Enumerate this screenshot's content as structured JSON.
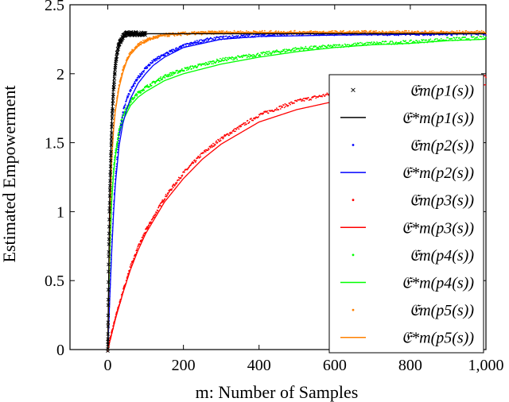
{
  "chart_data": {
    "type": "line",
    "xlabel": "m: Number of Samples",
    "ylabel": "Estimated Empowerment",
    "xlim": [
      -100,
      1000
    ],
    "ylim": [
      0,
      2.5
    ],
    "xticks": [
      0,
      200,
      400,
      600,
      800,
      1000
    ],
    "xtick_labels": [
      "0",
      "200",
      "400",
      "600",
      "800",
      "1,000"
    ],
    "yticks": [
      0,
      0.5,
      1,
      1.5,
      2,
      2.5
    ],
    "ytick_labels": [
      "0",
      "0.5",
      "1",
      "1.5",
      "2",
      "2.5"
    ],
    "grid": false,
    "legend_position": "right",
    "legend": [
      {
        "label": "𝔈m(p1(s))",
        "kind": "marker",
        "marker": "x",
        "color": "#000000"
      },
      {
        "label": "𝔈*m(p1(s))",
        "kind": "line",
        "color": "#000000"
      },
      {
        "label": "𝔈m(p2(s))",
        "kind": "marker",
        "marker": "dot",
        "color": "#0000ff"
      },
      {
        "label": "𝔈*m(p2(s))",
        "kind": "line",
        "color": "#0000ff"
      },
      {
        "label": "𝔈m(p3(s))",
        "kind": "marker",
        "marker": "dot",
        "color": "#ff0000"
      },
      {
        "label": "𝔈*m(p3(s))",
        "kind": "line",
        "color": "#ff0000"
      },
      {
        "label": "𝔈m(p4(s))",
        "kind": "marker",
        "marker": "dot",
        "color": "#00ff00"
      },
      {
        "label": "𝔈*m(p4(s))",
        "kind": "line",
        "color": "#00ff00"
      },
      {
        "label": "𝔈m(p5(s))",
        "kind": "marker",
        "marker": "dot",
        "color": "#ff8000"
      },
      {
        "label": "𝔈*m(p5(s))",
        "kind": "line",
        "color": "#ff8000"
      }
    ],
    "series": [
      {
        "color": "#000000",
        "marker": "x",
        "estimated": {
          "x": [
            0,
            2,
            4,
            6,
            8,
            10,
            12,
            15,
            20,
            25,
            30,
            40,
            50,
            60,
            80,
            100
          ],
          "y": [
            0,
            0.62,
            0.97,
            1.22,
            1.4,
            1.58,
            1.72,
            1.88,
            2.05,
            2.16,
            2.22,
            2.27,
            2.29,
            2.29,
            2.29,
            2.29
          ]
        },
        "optimal": {
          "x": [
            0,
            5,
            10,
            15,
            20,
            30,
            40,
            60,
            100,
            200,
            1000
          ],
          "y": [
            0,
            1.12,
            1.63,
            1.93,
            2.08,
            2.21,
            2.26,
            2.28,
            2.29,
            2.29,
            2.29
          ]
        }
      },
      {
        "color": "#0000ff",
        "marker": "dot",
        "estimated": {
          "x": [
            0,
            5,
            10,
            15,
            20,
            30,
            40,
            50,
            60,
            80,
            100,
            120,
            150,
            200,
            250,
            300,
            400,
            500,
            700,
            1000
          ],
          "y": [
            0,
            0.38,
            0.73,
            1.02,
            1.25,
            1.55,
            1.72,
            1.82,
            1.88,
            1.97,
            2.04,
            2.09,
            2.14,
            2.2,
            2.24,
            2.26,
            2.28,
            2.29,
            2.29,
            2.29
          ]
        },
        "optimal": {
          "x": [
            0,
            5,
            10,
            15,
            20,
            30,
            40,
            50,
            60,
            80,
            100,
            120,
            150,
            200,
            300,
            400,
            600,
            1000
          ],
          "y": [
            0,
            0.36,
            0.69,
            0.98,
            1.2,
            1.48,
            1.64,
            1.74,
            1.82,
            1.93,
            2.0,
            2.06,
            2.12,
            2.19,
            2.25,
            2.27,
            2.28,
            2.29
          ]
        }
      },
      {
        "color": "#ff0000",
        "marker": "dot",
        "estimated": {
          "x": [
            0,
            10,
            20,
            40,
            60,
            80,
            100,
            150,
            200,
            250,
            300,
            400,
            500,
            600,
            700,
            800,
            900,
            1000
          ],
          "y": [
            0,
            0.12,
            0.23,
            0.42,
            0.6,
            0.74,
            0.86,
            1.1,
            1.28,
            1.42,
            1.53,
            1.7,
            1.8,
            1.86,
            1.9,
            1.93,
            1.96,
            1.98
          ]
        },
        "optimal": {
          "x": [
            0,
            10,
            20,
            40,
            60,
            80,
            100,
            150,
            200,
            250,
            300,
            400,
            500,
            600,
            700,
            800,
            900,
            1000
          ],
          "y": [
            0,
            0.11,
            0.22,
            0.41,
            0.58,
            0.72,
            0.84,
            1.07,
            1.24,
            1.38,
            1.49,
            1.65,
            1.74,
            1.8,
            1.84,
            1.87,
            1.9,
            1.92
          ]
        }
      },
      {
        "color": "#00ff00",
        "marker": "dot",
        "estimated": {
          "x": [
            0,
            5,
            10,
            15,
            20,
            30,
            40,
            60,
            80,
            100,
            150,
            200,
            300,
            400,
            500,
            600,
            700,
            800,
            900,
            1000
          ],
          "y": [
            0,
            0.68,
            1.1,
            1.3,
            1.43,
            1.6,
            1.7,
            1.8,
            1.86,
            1.9,
            1.98,
            2.03,
            2.1,
            2.14,
            2.18,
            2.2,
            2.22,
            2.23,
            2.25,
            2.26
          ]
        },
        "optimal": {
          "x": [
            0,
            5,
            10,
            15,
            20,
            30,
            40,
            60,
            80,
            100,
            150,
            200,
            300,
            400,
            500,
            600,
            700,
            800,
            900,
            1000
          ],
          "y": [
            0,
            0.66,
            1.06,
            1.27,
            1.4,
            1.56,
            1.66,
            1.77,
            1.83,
            1.87,
            1.95,
            2.0,
            2.07,
            2.12,
            2.16,
            2.19,
            2.21,
            2.22,
            2.24,
            2.25
          ]
        }
      },
      {
        "color": "#ff8000",
        "marker": "dot",
        "estimated": {
          "x": [
            0,
            5,
            10,
            15,
            20,
            30,
            40,
            50,
            60,
            80,
            100,
            120,
            150,
            200,
            300,
            1000
          ],
          "y": [
            0,
            0.9,
            1.38,
            1.6,
            1.75,
            1.92,
            2.03,
            2.1,
            2.15,
            2.21,
            2.24,
            2.26,
            2.28,
            2.29,
            2.3,
            2.3
          ]
        },
        "optimal": {
          "x": [
            0,
            5,
            10,
            15,
            20,
            30,
            40,
            50,
            60,
            80,
            100,
            120,
            150,
            200,
            300,
            1000
          ],
          "y": [
            0,
            0.88,
            1.35,
            1.58,
            1.73,
            1.9,
            2.01,
            2.09,
            2.14,
            2.2,
            2.24,
            2.26,
            2.28,
            2.29,
            2.3,
            2.3
          ]
        }
      }
    ]
  }
}
